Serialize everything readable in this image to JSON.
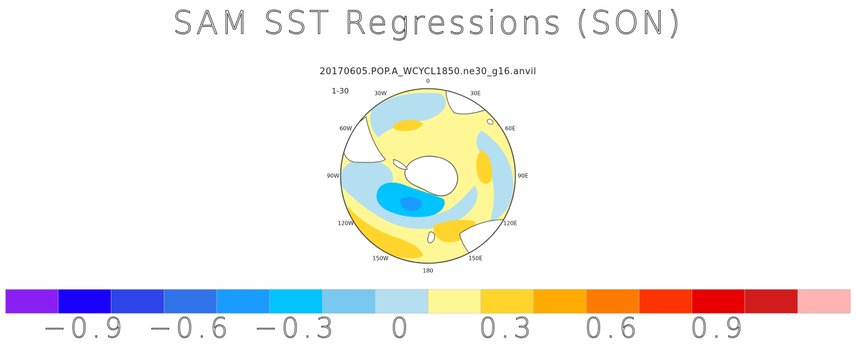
{
  "chart_data": {
    "type": "heatmap",
    "projection": "south-polar-stereographic",
    "title": "SAM SST Regressions (SON)",
    "subtitle": "20170605.POP.A_WCYCL1850.ne30_g16.anvil",
    "panel_label": "1-30",
    "longitude_labels": [
      "0",
      "30E",
      "60E",
      "90E",
      "120E",
      "150E",
      "180",
      "150W",
      "120W",
      "90W",
      "60W",
      "30W"
    ],
    "colorbar": {
      "levels": [
        -1.05,
        -0.9,
        -0.75,
        -0.6,
        -0.45,
        -0.3,
        -0.15,
        0,
        0.15,
        0.3,
        0.45,
        0.6,
        0.75,
        0.9,
        1.05
      ],
      "colors": [
        "#8a1ff5",
        "#1a00ff",
        "#2c44e8",
        "#3173e8",
        "#1a9bff",
        "#00c3ff",
        "#78c8f0",
        "#b4dff0",
        "#fff796",
        "#ffd52b",
        "#ffab00",
        "#ff7a00",
        "#ff3300",
        "#e80000",
        "#d21c1c",
        "#ffb3b3"
      ],
      "tick_labels": [
        "−0.9",
        "−0.6",
        "−0.3",
        "0",
        "0.3",
        "0.6",
        "0.9"
      ],
      "tick_values": [
        -0.9,
        -0.6,
        -0.3,
        0,
        0.3,
        0.6,
        0.9
      ]
    },
    "regions": [
      {
        "name": "background",
        "value": 0.1
      },
      {
        "name": "south-pacific-negative-core",
        "value": -0.35
      },
      {
        "name": "south-pacific-negative-center",
        "value": -0.5
      },
      {
        "name": "amundsen-negative-band",
        "value": -0.1
      },
      {
        "name": "south-atlantic-negative",
        "value": -0.1
      },
      {
        "name": "indian-ocean-negative",
        "value": -0.1
      },
      {
        "name": "south-pacific-positive-arc",
        "value": 0.2
      },
      {
        "name": "ross-sea-positive",
        "value": 0.2
      },
      {
        "name": "indian-ocean-positive",
        "value": 0.2
      },
      {
        "name": "south-atlantic-positive",
        "value": 0.2
      }
    ]
  }
}
